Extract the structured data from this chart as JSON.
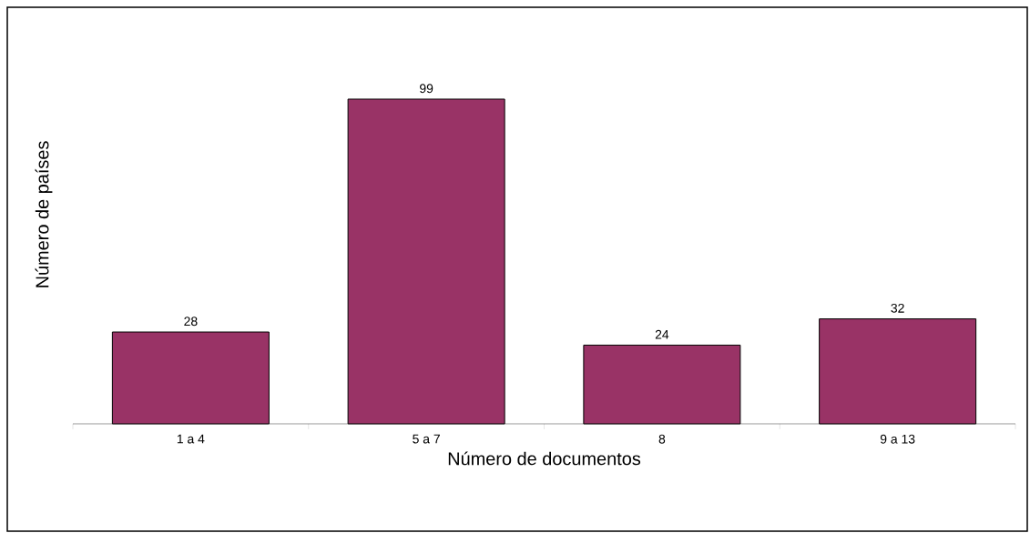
{
  "chart_data": {
    "type": "bar",
    "xlabel": "Número de documentos",
    "ylabel": "Número de países",
    "categories": [
      "1 a 4",
      "5 a 7",
      "8",
      "9 a 13"
    ],
    "values": [
      28,
      99,
      24,
      32
    ],
    "color": "#993366",
    "data_labels": true
  }
}
